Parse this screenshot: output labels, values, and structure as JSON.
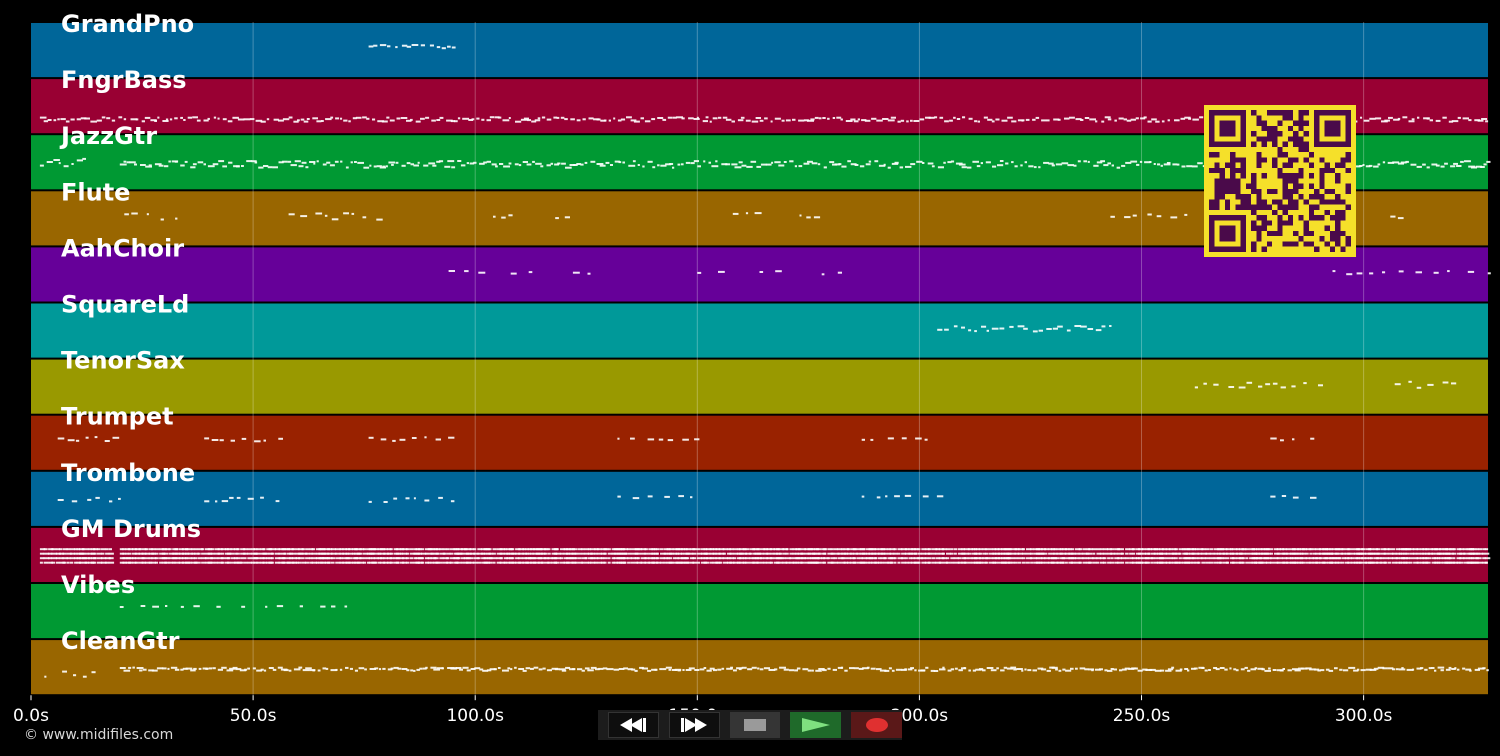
{
  "timeline": {
    "tick_labels": [
      "0.0s",
      "50.0s",
      "100.0s",
      "150.0s",
      "200.0s",
      "250.0s",
      "300.0s"
    ],
    "tick_values": [
      0,
      50,
      100,
      150,
      200,
      250,
      300
    ],
    "range_seconds": [
      0,
      328
    ]
  },
  "tracks": [
    {
      "name": "GrandPno",
      "color": "#006699"
    },
    {
      "name": "FngrBass",
      "color": "#990033"
    },
    {
      "name": "JazzGtr",
      "color": "#009933"
    },
    {
      "name": "Flute",
      "color": "#996600"
    },
    {
      "name": "AahChoir",
      "color": "#660099"
    },
    {
      "name": "SquareLd",
      "color": "#009999"
    },
    {
      "name": "TenorSax",
      "color": "#999900"
    },
    {
      "name": "Trumpet",
      "color": "#992200"
    },
    {
      "name": "Trombone",
      "color": "#006699"
    },
    {
      "name": "GM Drums",
      "color": "#990033"
    },
    {
      "name": "Vibes",
      "color": "#009933"
    },
    {
      "name": "CleanGtr",
      "color": "#996600"
    }
  ],
  "footer": {
    "copyright": "© www.midifiles.com"
  },
  "transport": {
    "rewind_icon": "rewind-icon",
    "forward_icon": "fast-forward-icon",
    "stop_icon": "stop-icon",
    "play_icon": "play-icon",
    "record_icon": "record-icon"
  },
  "qr": {
    "fg": "#4a0a4a",
    "bg": "#f5e02a"
  }
}
